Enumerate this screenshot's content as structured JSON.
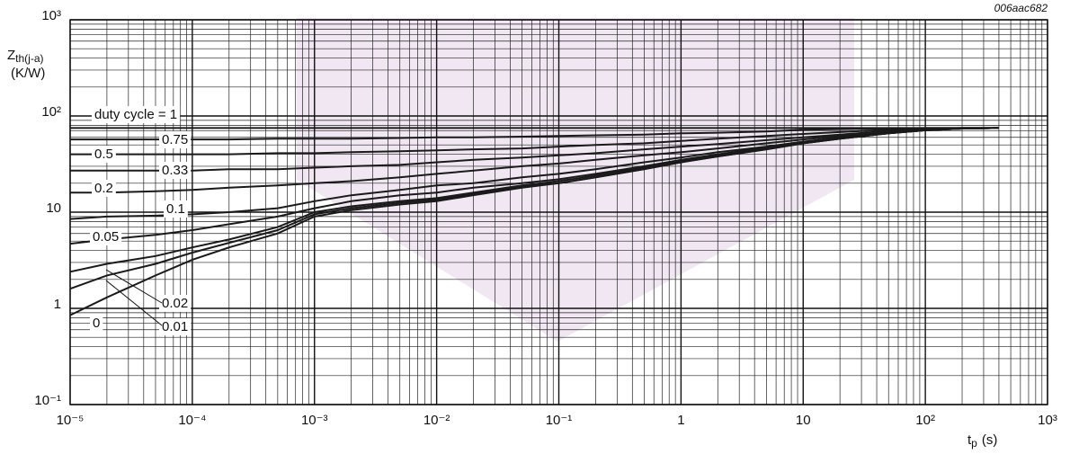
{
  "chart_data": {
    "type": "line",
    "code": "006aac682",
    "y_label": [
      "Z",
      "th(j-a)",
      "(K/W)"
    ],
    "x_label": [
      "t",
      "p",
      "(s)"
    ],
    "x_log": true,
    "y_log": true,
    "grid": true,
    "minor_grid": true,
    "xlim": [
      1e-05,
      1000
    ],
    "ylim": [
      0.1,
      1000
    ],
    "xticks": [
      {
        "value": 1e-05,
        "label": "10⁻⁵"
      },
      {
        "value": 0.0001,
        "label": "10⁻⁴"
      },
      {
        "value": 0.001,
        "label": "10⁻³"
      },
      {
        "value": 0.01,
        "label": "10⁻²"
      },
      {
        "value": 0.1,
        "label": "10⁻¹"
      },
      1,
      10,
      {
        "value": 100,
        "label": "10²"
      },
      {
        "value": 1000,
        "label": "10³"
      }
    ],
    "yticks": [
      {
        "value": 0.1,
        "label": "10⁻¹"
      },
      1,
      10,
      {
        "value": 100,
        "label": "10²"
      },
      {
        "value": 1000,
        "label": "10³"
      }
    ],
    "x": [
      1e-05,
      2e-05,
      5e-05,
      0.0001,
      0.0002,
      0.0005,
      0.001,
      0.002,
      0.005,
      0.01,
      0.02,
      0.05,
      0.1,
      0.2,
      0.5,
      1,
      2,
      5,
      10,
      20,
      50,
      100,
      200,
      400
    ],
    "series": [
      {
        "name": "duty cycle = 1",
        "color": "#1a1a1a",
        "values": [
          75,
          75,
          75,
          75,
          75,
          75,
          75,
          75,
          75,
          75,
          75,
          75,
          75,
          75,
          75,
          75,
          75,
          75,
          75,
          75,
          75,
          75,
          75,
          75
        ]
      },
      {
        "name": "0.75",
        "color": "#1a1a1a",
        "values": [
          57,
          57,
          57,
          57,
          57,
          58,
          58,
          58,
          59,
          60,
          60,
          61,
          62,
          63,
          64,
          66,
          67,
          69,
          72,
          73,
          74,
          75,
          75,
          75
        ]
      },
      {
        "name": "0.5",
        "color": "#1a1a1a",
        "values": [
          40,
          40,
          40,
          40,
          40,
          41,
          41,
          42,
          43,
          44,
          45,
          46,
          48,
          50,
          52,
          55,
          58,
          62,
          65,
          68,
          72,
          74,
          75,
          75
        ]
      },
      {
        "name": "0.33",
        "color": "#1a1a1a",
        "values": [
          27,
          27,
          27,
          27,
          28,
          28,
          29,
          30,
          31,
          33,
          35,
          37,
          39,
          41,
          45,
          48,
          51,
          56,
          60,
          64,
          70,
          73,
          75,
          75
        ]
      },
      {
        "name": "0.2",
        "color": "#1a1a1a",
        "values": [
          16,
          16,
          16.5,
          17,
          18,
          19,
          20,
          21,
          23,
          25,
          27,
          30,
          32,
          35,
          39,
          42,
          46,
          52,
          57,
          62,
          68,
          72,
          74,
          75
        ]
      },
      {
        "name": "0.1",
        "color": "#1a1a1a",
        "values": [
          8.5,
          9,
          9.2,
          9.5,
          10,
          11,
          13,
          15,
          17,
          19,
          20,
          23,
          25,
          28,
          33,
          37,
          42,
          48,
          54,
          60,
          67,
          72,
          74,
          75
        ]
      },
      {
        "name": "0.05",
        "color": "#1a1a1a",
        "values": [
          4.7,
          5.2,
          5.8,
          6.5,
          7.5,
          9,
          11,
          13,
          15,
          16,
          18,
          20,
          22,
          25,
          30,
          35,
          40,
          47,
          53,
          59,
          66,
          71,
          74,
          75
        ]
      },
      {
        "name": "0.02",
        "color": "#1a1a1a",
        "values": [
          2.4,
          2.9,
          3.5,
          4.3,
          5.2,
          7,
          10,
          11.5,
          13,
          14,
          16,
          19,
          21,
          24,
          29,
          34,
          39,
          46,
          52,
          58,
          66,
          71,
          74,
          75
        ]
      },
      {
        "name": "0.01",
        "color": "#1a1a1a",
        "values": [
          1.6,
          2.2,
          2.9,
          3.8,
          4.8,
          6.5,
          9.5,
          11,
          12.5,
          13.5,
          15.5,
          18.5,
          20,
          23,
          28,
          33,
          38,
          45,
          52,
          58,
          66,
          71,
          74,
          75
        ]
      },
      {
        "name": "0",
        "color": "#1a1a1a",
        "values": [
          0.85,
          1.3,
          2.2,
          3.2,
          4.3,
          6,
          9,
          10.5,
          12,
          13,
          15,
          18,
          20,
          23,
          28,
          33,
          38,
          45,
          52,
          58,
          66,
          71,
          74,
          75
        ]
      }
    ]
  }
}
